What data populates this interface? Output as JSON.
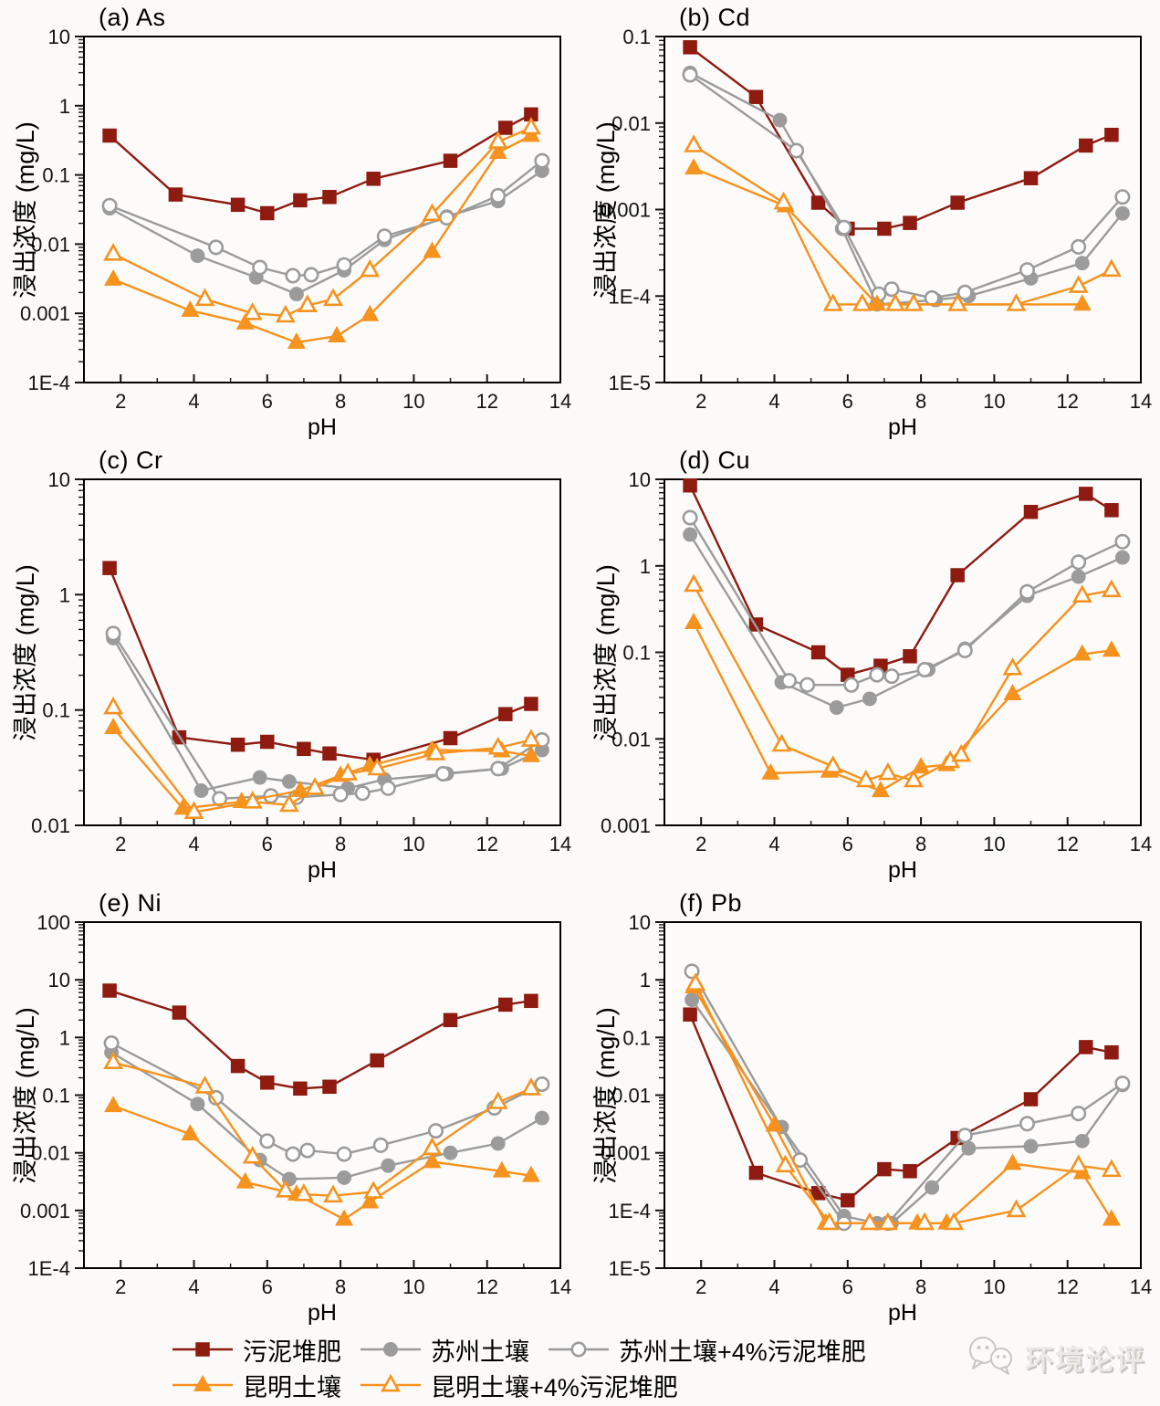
{
  "page": {
    "background": "#fbfaf8"
  },
  "axes": {
    "xlabel": "pH",
    "ylabel": "浸出浓度 (mg/L)",
    "xlim": [
      1,
      14
    ],
    "xticks": [
      2,
      4,
      6,
      8,
      10,
      12,
      14
    ]
  },
  "series_defs": [
    {
      "id": "sludge_compost",
      "label": "污泥堆肥",
      "color": "#8e1a10",
      "marker": "square",
      "open": false
    },
    {
      "id": "suzhou_soil",
      "label": "苏州土壤",
      "color": "#9b9b9b",
      "marker": "circle",
      "open": false
    },
    {
      "id": "suzhou_soil_4pct",
      "label": "苏州土壤+4%污泥堆肥",
      "color": "#9b9b9b",
      "marker": "circle",
      "open": true
    },
    {
      "id": "kunming_soil",
      "label": "昆明土壤",
      "color": "#f6921e",
      "marker": "triangle",
      "open": false
    },
    {
      "id": "kunming_soil_4pct",
      "label": "昆明土壤+4%污泥堆肥",
      "color": "#f6921e",
      "marker": "triangle",
      "open": true
    }
  ],
  "legend": {
    "rows": [
      [
        "sludge_compost",
        "suzhou_soil",
        "suzhou_soil_4pct"
      ],
      [
        "kunming_soil",
        "kunming_soil_4pct"
      ]
    ]
  },
  "watermark": {
    "text": "环境论评",
    "icon": "wechat-logo-icon",
    "color": "#d9d6d2"
  },
  "chart_data": [
    {
      "panel": "a",
      "type": "line",
      "title": "(a) As",
      "element": "As",
      "xlabel": "pH",
      "ylabel": "浸出浓度 (mg/L)",
      "xlim": [
        1,
        14
      ],
      "ylim": [
        0.0001,
        10
      ],
      "grid": false,
      "legend_position": "bottom-shared",
      "yticks": [
        {
          "v": 10,
          "l": "10"
        },
        {
          "v": 1,
          "l": "1"
        },
        {
          "v": 0.1,
          "l": "0.1"
        },
        {
          "v": 0.01,
          "l": "0.01"
        },
        {
          "v": 0.001,
          "l": "0.001"
        },
        {
          "v": 0.0001,
          "l": "1E-4"
        }
      ],
      "series": [
        {
          "ref": "sludge_compost",
          "x": [
            1.7,
            3.5,
            5.2,
            6.0,
            6.9,
            7.7,
            8.9,
            11.0,
            12.5,
            13.2
          ],
          "y": [
            0.37,
            0.052,
            0.037,
            0.028,
            0.043,
            0.048,
            0.088,
            0.16,
            0.48,
            0.75
          ]
        },
        {
          "ref": "suzhou_soil",
          "x": [
            1.7,
            4.1,
            5.7,
            6.8,
            8.1,
            9.2,
            10.9,
            12.3,
            13.5
          ],
          "y": [
            0.033,
            0.0068,
            0.0033,
            0.0019,
            0.0042,
            0.0115,
            0.025,
            0.042,
            0.115
          ]
        },
        {
          "ref": "suzhou_soil_4pct",
          "x": [
            1.7,
            4.6,
            5.8,
            6.7,
            7.2,
            8.1,
            9.2,
            10.9,
            12.3,
            13.5
          ],
          "y": [
            0.036,
            0.009,
            0.0046,
            0.0035,
            0.0036,
            0.005,
            0.013,
            0.024,
            0.05,
            0.16
          ]
        },
        {
          "ref": "kunming_soil",
          "x": [
            1.8,
            3.9,
            5.4,
            6.8,
            7.9,
            8.8,
            10.5,
            12.3,
            13.2
          ],
          "y": [
            0.0031,
            0.0011,
            0.00072,
            0.00038,
            0.00047,
            0.00095,
            0.0078,
            0.21,
            0.37
          ]
        },
        {
          "ref": "kunming_soil_4pct",
          "x": [
            1.8,
            4.3,
            5.6,
            6.5,
            7.1,
            7.8,
            8.8,
            10.5,
            12.3,
            13.2
          ],
          "y": [
            0.0072,
            0.0016,
            0.001,
            0.00092,
            0.0013,
            0.0016,
            0.0042,
            0.027,
            0.3,
            0.48
          ]
        }
      ]
    },
    {
      "panel": "b",
      "type": "line",
      "title": "(b) Cd",
      "element": "Cd",
      "xlabel": "pH",
      "ylabel": "浸出浓度 (mg/L)",
      "xlim": [
        1,
        14
      ],
      "ylim": [
        1e-05,
        0.1
      ],
      "grid": false,
      "legend_position": "bottom-shared",
      "yticks": [
        {
          "v": 0.1,
          "l": "0.1"
        },
        {
          "v": 0.01,
          "l": "0.01"
        },
        {
          "v": 0.001,
          "l": "0.001"
        },
        {
          "v": 0.0001,
          "l": "1E-4"
        },
        {
          "v": 1e-05,
          "l": "1E-5"
        }
      ],
      "series": [
        {
          "ref": "sludge_compost",
          "x": [
            1.7,
            3.5,
            5.2,
            6.0,
            7.0,
            7.7,
            9.0,
            11.0,
            12.5,
            13.2
          ],
          "y": [
            0.075,
            0.02,
            0.0012,
            0.0006,
            0.0006,
            0.0007,
            0.0012,
            0.0023,
            0.0055,
            0.0073
          ]
        },
        {
          "ref": "suzhou_soil",
          "x": [
            1.7,
            4.15,
            5.85,
            6.8,
            8.4,
            9.3,
            11.0,
            12.4,
            13.5
          ],
          "y": [
            0.038,
            0.0108,
            0.0006,
            8e-05,
            9e-05,
            0.0001,
            0.00016,
            0.00024,
            0.0009
          ]
        },
        {
          "ref": "suzhou_soil_4pct",
          "x": [
            1.7,
            4.6,
            5.9,
            6.85,
            7.2,
            8.3,
            9.2,
            10.9,
            12.3,
            13.5
          ],
          "y": [
            0.036,
            0.0048,
            0.00062,
            0.000105,
            0.00012,
            9.5e-05,
            0.00011,
            0.0002,
            0.00037,
            0.0014
          ]
        },
        {
          "ref": "kunming_soil",
          "x": [
            1.8,
            4.3,
            6.8,
            12.4
          ],
          "y": [
            0.003,
            0.0011,
            8e-05,
            8e-05
          ]
        },
        {
          "ref": "kunming_soil_4pct",
          "x": [
            1.8,
            4.25,
            5.6,
            6.4,
            7.3,
            7.8,
            9.0,
            10.6,
            12.3,
            13.2
          ],
          "y": [
            0.0055,
            0.0012,
            8e-05,
            8e-05,
            8e-05,
            8e-05,
            8e-05,
            8e-05,
            0.00013,
            0.0002
          ]
        }
      ]
    },
    {
      "panel": "c",
      "type": "line",
      "title": "(c) Cr",
      "element": "Cr",
      "xlabel": "pH",
      "ylabel": "浸出浓度 (mg/L)",
      "xlim": [
        1,
        14
      ],
      "ylim": [
        0.01,
        10
      ],
      "grid": false,
      "legend_position": "bottom-shared",
      "yticks": [
        {
          "v": 10,
          "l": "10"
        },
        {
          "v": 1,
          "l": "1"
        },
        {
          "v": 0.1,
          "l": "0.1"
        },
        {
          "v": 0.01,
          "l": "0.01"
        }
      ],
      "series": [
        {
          "ref": "sludge_compost",
          "x": [
            1.7,
            3.6,
            5.2,
            6.0,
            7.0,
            7.7,
            8.9,
            11.0,
            12.5,
            13.2
          ],
          "y": [
            1.7,
            0.058,
            0.05,
            0.053,
            0.046,
            0.042,
            0.037,
            0.057,
            0.092,
            0.113
          ]
        },
        {
          "ref": "suzhou_soil",
          "x": [
            1.8,
            4.2,
            5.8,
            6.6,
            8.2,
            9.2,
            10.9,
            12.4,
            13.5
          ],
          "y": [
            0.42,
            0.02,
            0.026,
            0.024,
            0.021,
            0.025,
            0.028,
            0.031,
            0.045
          ]
        },
        {
          "ref": "suzhou_soil_4pct",
          "x": [
            1.8,
            4.7,
            6.1,
            6.8,
            8.0,
            8.6,
            9.3,
            10.8,
            12.3,
            13.5
          ],
          "y": [
            0.46,
            0.017,
            0.018,
            0.0175,
            0.0185,
            0.019,
            0.021,
            0.028,
            0.031,
            0.055
          ]
        },
        {
          "ref": "kunming_soil",
          "x": [
            1.8,
            3.7,
            5.3,
            6.9,
            8.0,
            8.8,
            10.5,
            12.4,
            13.2
          ],
          "y": [
            0.07,
            0.014,
            0.016,
            0.02,
            0.027,
            0.033,
            0.045,
            0.044,
            0.04
          ]
        },
        {
          "ref": "kunming_soil_4pct",
          "x": [
            1.8,
            4.0,
            5.6,
            6.6,
            7.3,
            8.2,
            9.0,
            10.6,
            12.3,
            13.2
          ],
          "y": [
            0.105,
            0.013,
            0.016,
            0.015,
            0.021,
            0.028,
            0.031,
            0.042,
            0.047,
            0.055
          ]
        }
      ]
    },
    {
      "panel": "d",
      "type": "line",
      "title": "(d) Cu",
      "element": "Cu",
      "xlabel": "pH",
      "ylabel": "浸出浓度 (mg/L)",
      "xlim": [
        1,
        14
      ],
      "ylim": [
        0.001,
        10
      ],
      "grid": false,
      "legend_position": "bottom-shared",
      "yticks": [
        {
          "v": 10,
          "l": "10"
        },
        {
          "v": 1,
          "l": "1"
        },
        {
          "v": 0.1,
          "l": "0.1"
        },
        {
          "v": 0.01,
          "l": "0.01"
        },
        {
          "v": 0.001,
          "l": "0.001"
        }
      ],
      "series": [
        {
          "ref": "sludge_compost",
          "x": [
            1.7,
            3.5,
            5.2,
            6.0,
            6.9,
            7.7,
            9.0,
            11.0,
            12.5,
            13.2
          ],
          "y": [
            8.5,
            0.21,
            0.1,
            0.055,
            0.07,
            0.09,
            0.78,
            4.2,
            6.8,
            4.4
          ]
        },
        {
          "ref": "suzhou_soil",
          "x": [
            1.7,
            4.2,
            5.7,
            6.6,
            8.2,
            9.2,
            10.9,
            12.3,
            13.5
          ],
          "y": [
            2.3,
            0.045,
            0.023,
            0.029,
            0.063,
            0.11,
            0.45,
            0.75,
            1.25
          ]
        },
        {
          "ref": "suzhou_soil_4pct",
          "x": [
            1.7,
            4.4,
            4.9,
            6.1,
            6.8,
            7.2,
            8.1,
            9.2,
            10.9,
            12.3,
            13.5
          ],
          "y": [
            3.6,
            0.047,
            0.042,
            0.042,
            0.055,
            0.053,
            0.063,
            0.105,
            0.5,
            1.1,
            1.9
          ]
        },
        {
          "ref": "kunming_soil",
          "x": [
            1.8,
            3.9,
            5.5,
            6.9,
            8.0,
            8.7,
            10.5,
            12.4,
            13.2
          ],
          "y": [
            0.22,
            0.004,
            0.0042,
            0.0025,
            0.0047,
            0.005,
            0.033,
            0.095,
            0.105
          ]
        },
        {
          "ref": "kunming_soil_4pct",
          "x": [
            1.8,
            4.2,
            5.6,
            6.5,
            7.1,
            7.8,
            8.8,
            9.1,
            10.5,
            12.4,
            13.2
          ],
          "y": [
            0.6,
            0.0085,
            0.0048,
            0.0033,
            0.004,
            0.0033,
            0.0055,
            0.0065,
            0.065,
            0.45,
            0.52
          ]
        }
      ]
    },
    {
      "panel": "e",
      "type": "line",
      "title": "(e) Ni",
      "element": "Ni",
      "xlabel": "pH",
      "ylabel": "浸出浓度 (mg/L)",
      "xlim": [
        1,
        14
      ],
      "ylim": [
        0.0001,
        100
      ],
      "grid": false,
      "legend_position": "bottom-shared",
      "yticks": [
        {
          "v": 100,
          "l": "100"
        },
        {
          "v": 10,
          "l": "10"
        },
        {
          "v": 1,
          "l": "1"
        },
        {
          "v": 0.1,
          "l": "0.1"
        },
        {
          "v": 0.01,
          "l": "0.01"
        },
        {
          "v": 0.001,
          "l": "0.001"
        },
        {
          "v": 0.0001,
          "l": "1E-4"
        }
      ],
      "series": [
        {
          "ref": "sludge_compost",
          "x": [
            1.7,
            3.6,
            5.2,
            6.0,
            6.9,
            7.7,
            9.0,
            11.0,
            12.5,
            13.2
          ],
          "y": [
            6.5,
            2.7,
            0.32,
            0.165,
            0.13,
            0.14,
            0.4,
            2.0,
            3.7,
            4.3
          ]
        },
        {
          "ref": "suzhou_soil",
          "x": [
            1.75,
            4.1,
            5.8,
            6.6,
            8.1,
            9.3,
            11.0,
            12.3,
            13.5
          ],
          "y": [
            0.55,
            0.07,
            0.0075,
            0.0035,
            0.0037,
            0.006,
            0.01,
            0.0145,
            0.04
          ]
        },
        {
          "ref": "suzhou_soil_4pct",
          "x": [
            1.75,
            4.6,
            6.0,
            6.7,
            7.1,
            8.1,
            9.1,
            10.6,
            12.2,
            13.5
          ],
          "y": [
            0.8,
            0.09,
            0.016,
            0.0095,
            0.011,
            0.0095,
            0.0135,
            0.024,
            0.06,
            0.155
          ]
        },
        {
          "ref": "kunming_soil",
          "x": [
            1.8,
            3.9,
            5.4,
            6.8,
            8.1,
            8.8,
            10.5,
            12.4,
            13.2
          ],
          "y": [
            0.065,
            0.021,
            0.0031,
            0.0019,
            0.0007,
            0.0014,
            0.007,
            0.0048,
            0.004
          ]
        },
        {
          "ref": "kunming_soil_4pct",
          "x": [
            1.8,
            4.3,
            5.6,
            6.5,
            7.0,
            7.8,
            8.9,
            10.5,
            12.3,
            13.2
          ],
          "y": [
            0.37,
            0.14,
            0.0085,
            0.0022,
            0.0019,
            0.0018,
            0.0021,
            0.012,
            0.075,
            0.13
          ]
        }
      ]
    },
    {
      "panel": "f",
      "type": "line",
      "title": "(f) Pb",
      "element": "Pb",
      "xlabel": "pH",
      "ylabel": "浸出浓度 (mg/L)",
      "xlim": [
        1,
        14
      ],
      "ylim": [
        1e-05,
        10
      ],
      "grid": false,
      "legend_position": "bottom-shared",
      "yticks": [
        {
          "v": 10,
          "l": "10"
        },
        {
          "v": 1,
          "l": "1"
        },
        {
          "v": 0.1,
          "l": "0.1"
        },
        {
          "v": 0.01,
          "l": "0.01"
        },
        {
          "v": 0.001,
          "l": "0.001"
        },
        {
          "v": 0.0001,
          "l": "1E-4"
        },
        {
          "v": 1e-05,
          "l": "1E-5"
        }
      ],
      "series": [
        {
          "ref": "sludge_compost",
          "x": [
            1.7,
            3.5,
            5.2,
            6.0,
            7.0,
            7.7,
            9.0,
            11.0,
            12.5,
            13.2
          ],
          "y": [
            0.25,
            0.00045,
            0.0002,
            0.00015,
            0.00052,
            0.00048,
            0.0018,
            0.0085,
            0.068,
            0.055
          ]
        },
        {
          "ref": "suzhou_soil",
          "x": [
            1.75,
            4.2,
            5.9,
            6.8,
            7.2,
            8.3,
            9.3,
            11.0,
            12.4,
            13.5
          ],
          "y": [
            0.45,
            0.0028,
            8e-05,
            6e-05,
            6e-05,
            0.00025,
            0.0012,
            0.0013,
            0.0016,
            0.015
          ]
        },
        {
          "ref": "suzhou_soil_4pct",
          "x": [
            1.75,
            4.7,
            5.9,
            7.1,
            9.2,
            10.9,
            12.3,
            13.5
          ],
          "y": [
            1.4,
            0.00075,
            6e-05,
            6e-05,
            0.002,
            0.0032,
            0.0048,
            0.016
          ]
        },
        {
          "ref": "kunming_soil",
          "x": [
            1.8,
            4.0,
            5.4,
            6.6,
            7.9,
            8.7,
            10.5,
            12.4,
            13.2
          ],
          "y": [
            0.75,
            0.003,
            6e-05,
            6e-05,
            6e-05,
            6e-05,
            0.00065,
            0.00045,
            7e-05
          ]
        },
        {
          "ref": "kunming_soil_4pct",
          "x": [
            1.85,
            4.3,
            5.5,
            6.6,
            7.1,
            8.1,
            8.9,
            10.6,
            12.3,
            13.2
          ],
          "y": [
            0.85,
            0.0006,
            6e-05,
            6e-05,
            6e-05,
            6e-05,
            6e-05,
            0.0001,
            0.0006,
            0.0005
          ]
        }
      ]
    }
  ]
}
